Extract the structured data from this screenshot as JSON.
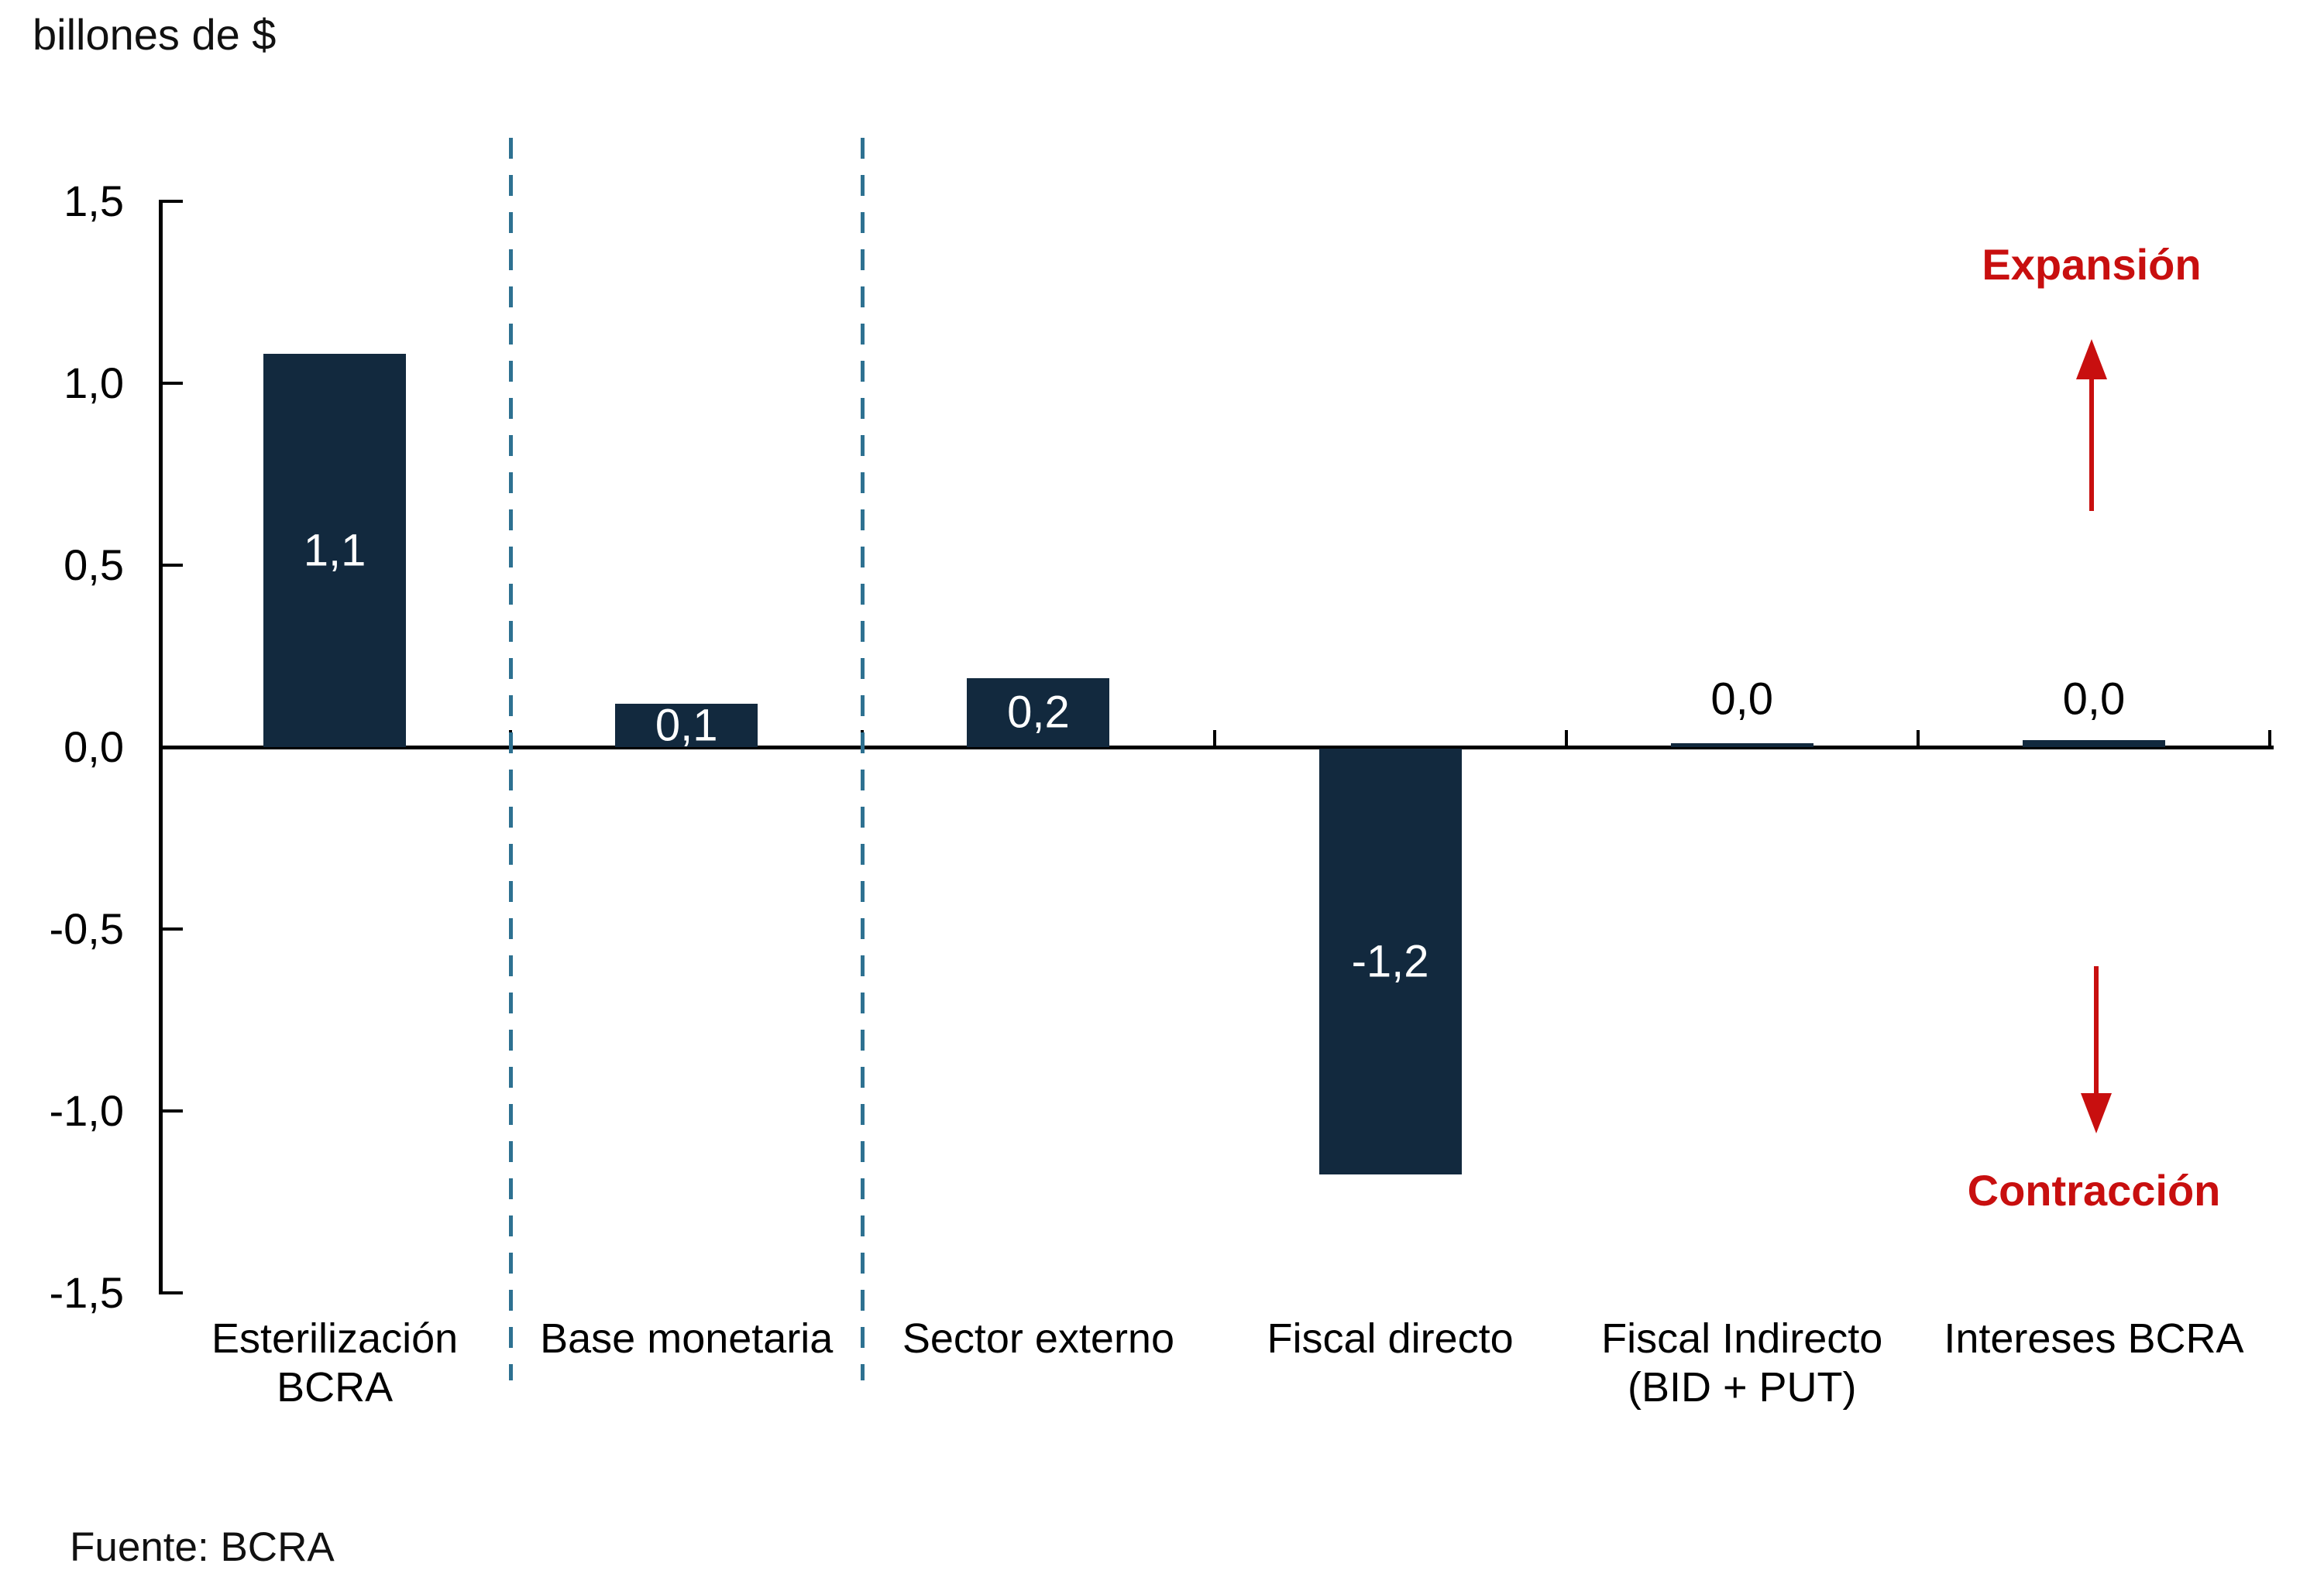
{
  "title": "billones de $",
  "source": "Fuente: BCRA",
  "annotations": {
    "expansion": {
      "label": "Expansión",
      "direction": "up"
    },
    "contraction": {
      "label": "Contracción",
      "direction": "down"
    }
  },
  "colors": {
    "background": "#FFFFFF",
    "bar": "#12293E",
    "separator": "#2E7191",
    "axis": "#000000",
    "accent_red": "#C80F0F",
    "value_label_inside": "#FFFFFF",
    "value_label_outside": "#000000",
    "text": "#111111"
  },
  "chart_data": {
    "type": "bar",
    "title": "billones de $",
    "xlabel": "",
    "ylabel": "billones de $",
    "categories": [
      "Esterilización\nBCRA",
      "Base monetaria",
      "Sector externo",
      "Fiscal directo",
      "Fiscal Indirecto\n(BID + PUT)",
      "Intereses BCRA"
    ],
    "values": [
      1.08,
      0.12,
      0.19,
      -1.17,
      0.01,
      0.02
    ],
    "value_labels": [
      "1,1",
      "0,1",
      "0,2",
      "-1,2",
      "0,0",
      "0,0"
    ],
    "value_label_placement": [
      "inside",
      "inside",
      "inside",
      "inside",
      "above",
      "above"
    ],
    "ylim": [
      -1.5,
      1.5
    ],
    "y_ticks": [
      {
        "value": 1.5,
        "label": "1,5"
      },
      {
        "value": 1.0,
        "label": "1,0"
      },
      {
        "value": 0.5,
        "label": "0,5"
      },
      {
        "value": 0.0,
        "label": "0,0"
      },
      {
        "value": -0.5,
        "label": "-0,5"
      },
      {
        "value": -1.0,
        "label": "-1,0"
      },
      {
        "value": -1.5,
        "label": "-1,5"
      }
    ],
    "separators_after_category_index": [
      0,
      1
    ],
    "grid": false,
    "legend": false
  }
}
